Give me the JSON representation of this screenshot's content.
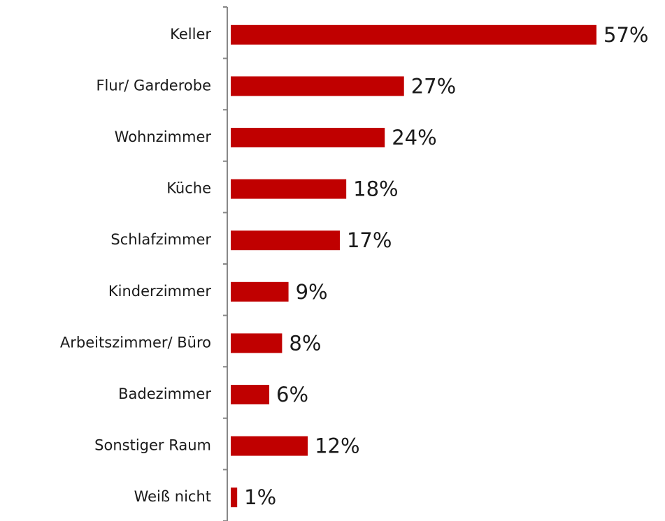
{
  "chart_data": {
    "type": "bar",
    "orientation": "horizontal",
    "categories": [
      "Keller",
      "Flur/ Garderobe",
      "Wohnzimmer",
      "Küche",
      "Schlafzimmer",
      "Kinderzimmer",
      "Arbeitszimmer/ Büro",
      "Badezimmer",
      "Sonstiger Raum",
      "Weiß nicht"
    ],
    "values": [
      57,
      27,
      24,
      18,
      17,
      9,
      8,
      6,
      12,
      1
    ],
    "value_labels": [
      "57%",
      "27%",
      "24%",
      "18%",
      "17%",
      "9%",
      "8%",
      "6%",
      "12%",
      "1%"
    ],
    "color": "#c00000"
  }
}
